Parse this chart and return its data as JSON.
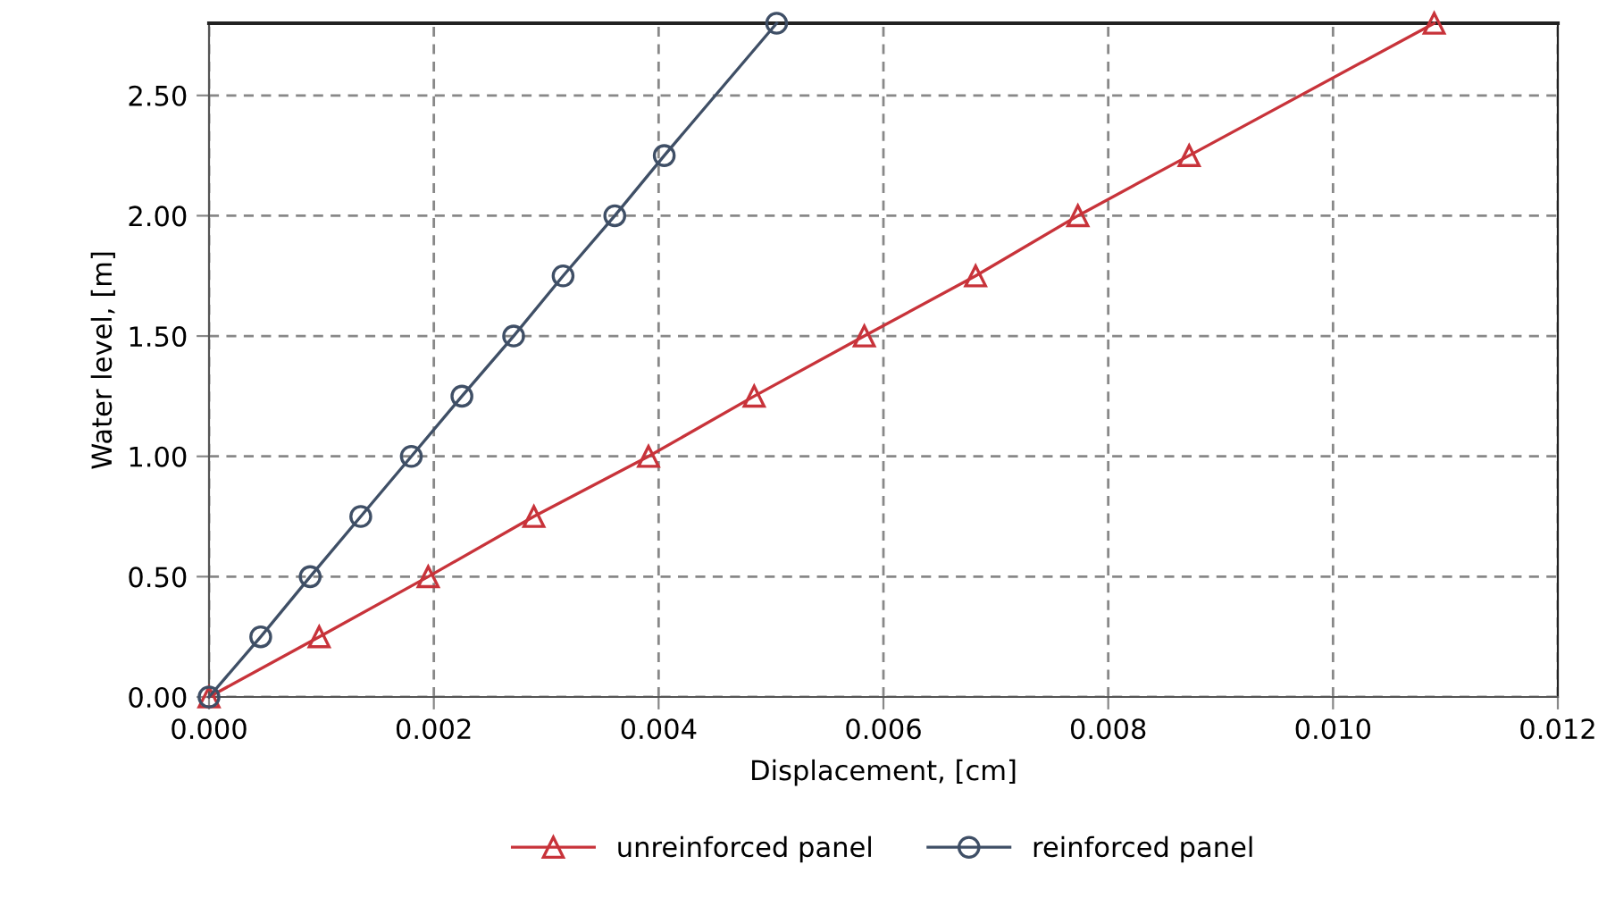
{
  "chart_data": {
    "type": "line",
    "xlabel": "Displacement, [cm]",
    "ylabel": "Water level, [m]",
    "xlim": [
      0,
      0.012
    ],
    "xticks": [
      {
        "value": 0,
        "label": "0.000"
      },
      {
        "value": 0.002,
        "label": "0.002"
      },
      {
        "value": 0.004,
        "label": "0.004"
      },
      {
        "value": 0.006,
        "label": "0.006"
      },
      {
        "value": 0.008,
        "label": "0.008"
      },
      {
        "value": 0.01,
        "label": "0.010"
      },
      {
        "value": 0.012,
        "label": "0.012"
      }
    ],
    "ylim": [
      0,
      2.8
    ],
    "yticks": [
      {
        "value": 0,
        "label": "0.00"
      },
      {
        "value": 0.5,
        "label": "0.50"
      },
      {
        "value": 1,
        "label": "1.00"
      },
      {
        "value": 1.5,
        "label": "1.50"
      },
      {
        "value": 2,
        "label": "2.00"
      },
      {
        "value": 2.5,
        "label": "2.50"
      }
    ],
    "grid": true,
    "legend": "bottom",
    "line_style": "solid",
    "series": [
      {
        "name": "unreinforced panel",
        "color": "#c8333a",
        "marker": "triangle",
        "x": [
          0,
          0.00098,
          0.00195,
          0.00289,
          0.00391,
          0.00485,
          0.00583,
          0.00682,
          0.00773,
          0.00872,
          0.0109
        ],
        "values": [
          0,
          0.25,
          0.5,
          0.75,
          1.0,
          1.25,
          1.5,
          1.75,
          2.0,
          2.25,
          2.8
        ]
      },
      {
        "name": "reinforced panel",
        "color": "#3f4f66",
        "marker": "circle",
        "x": [
          0,
          0.00046,
          0.0009,
          0.00135,
          0.0018,
          0.00225,
          0.00271,
          0.00315,
          0.00361,
          0.00405,
          0.00505
        ],
        "values": [
          0,
          0.25,
          0.5,
          0.75,
          1.0,
          1.25,
          1.5,
          1.75,
          2.0,
          2.25,
          2.8
        ]
      }
    ]
  }
}
